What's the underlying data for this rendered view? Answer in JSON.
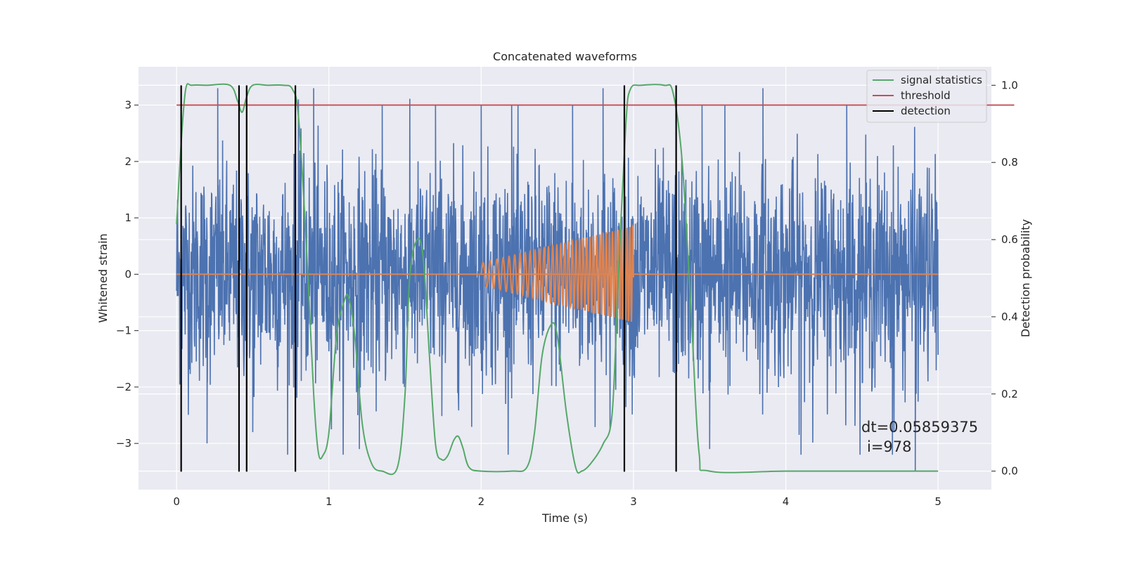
{
  "chart_data": {
    "type": "line",
    "title": "Concatenated waveforms",
    "xlabel": "Time (s)",
    "ylabel_left": "Whitened strain",
    "ylabel_right": "Detection probability",
    "xlim": [
      -0.25,
      5.35
    ],
    "ylim_left": [
      -3.82,
      3.68
    ],
    "ylim_right": [
      -0.048,
      1.048
    ],
    "x_ticks": [
      "0",
      "1",
      "2",
      "3",
      "4",
      "5"
    ],
    "y_left_ticks": [
      "−3",
      "−2",
      "−1",
      "0",
      "1",
      "2",
      "3"
    ],
    "y_right_ticks": [
      "0.0",
      "0.2",
      "0.4",
      "0.6",
      "0.8",
      "1.0"
    ],
    "grid": true,
    "legend_position": "top-right",
    "colors": {
      "strain": "#4c72b0",
      "injection": "#dd8452",
      "signal": "#55a868",
      "threshold": "#c44e52",
      "detection": "#000000",
      "background": "#eaeaf2"
    },
    "series": [
      {
        "name": "",
        "role": "strain",
        "axis": "left",
        "description_x_range": [
          0,
          5
        ],
        "envelope_pos": [
          [
            0,
            2.0
          ],
          [
            0.5,
            2.3
          ],
          [
            1,
            2.2
          ],
          [
            2,
            2.4
          ],
          [
            3,
            2.4
          ],
          [
            4,
            2.4
          ],
          [
            5,
            2.5
          ]
        ],
        "peak_values": [
          [
            0.27,
            3.3
          ],
          [
            0.8,
            3.1
          ],
          [
            0.9,
            3.3
          ],
          [
            1.35,
            3.0
          ],
          [
            1.7,
            3.0
          ],
          [
            2.0,
            3.0
          ],
          [
            2.2,
            3.0
          ],
          [
            2.6,
            3.0
          ],
          [
            2.8,
            3.3
          ],
          [
            3.45,
            3.0
          ],
          [
            3.6,
            3.0
          ],
          [
            3.85,
            3.3
          ],
          [
            4.4,
            3.0
          ],
          [
            4.85,
            -3.5
          ],
          [
            4.7,
            -3.2
          ],
          [
            4.1,
            -3.2
          ],
          [
            3.5,
            -3.1
          ],
          [
            1.2,
            -3.1
          ],
          [
            0.5,
            -2.8
          ],
          [
            0.2,
            -3.0
          ]
        ]
      },
      {
        "name": "",
        "role": "injection",
        "axis": "left",
        "x": [
          2.0,
          3.0
        ],
        "amplitude_start": 0.2,
        "amplitude_end": 0.85,
        "freq_start_hz": 20,
        "freq_end_hz": 55
      },
      {
        "name": "signal statistics",
        "role": "signal",
        "axis": "right",
        "x": [
          0.0,
          0.03,
          0.06,
          0.1,
          0.2,
          0.35,
          0.4,
          0.43,
          0.46,
          0.5,
          0.6,
          0.7,
          0.76,
          0.8,
          0.85,
          0.9,
          0.93,
          0.96,
          1.0,
          1.05,
          1.1,
          1.13,
          1.17,
          1.22,
          1.28,
          1.35,
          1.45,
          1.5,
          1.53,
          1.58,
          1.62,
          1.66,
          1.7,
          1.74,
          1.78,
          1.82,
          1.85,
          1.88,
          1.92,
          2.0,
          2.2,
          2.3,
          2.35,
          2.4,
          2.46,
          2.5,
          2.56,
          2.62,
          2.66,
          2.72,
          2.8,
          2.86,
          2.9,
          2.95,
          2.98,
          3.05,
          3.2,
          3.26,
          3.32,
          3.38,
          3.43,
          3.5,
          4.0,
          4.5,
          5.0
        ],
        "y": [
          0.64,
          0.85,
          0.99,
          1.0,
          1.0,
          1.0,
          0.96,
          0.93,
          0.97,
          1.0,
          1.0,
          1.0,
          0.99,
          0.92,
          0.6,
          0.2,
          0.05,
          0.04,
          0.1,
          0.35,
          0.44,
          0.45,
          0.35,
          0.12,
          0.02,
          0.0,
          0.01,
          0.2,
          0.5,
          0.6,
          0.55,
          0.3,
          0.07,
          0.03,
          0.04,
          0.08,
          0.09,
          0.06,
          0.01,
          0.0,
          0.0,
          0.01,
          0.1,
          0.3,
          0.38,
          0.35,
          0.15,
          0.01,
          0.0,
          0.02,
          0.07,
          0.15,
          0.5,
          0.9,
          0.99,
          1.0,
          1.0,
          0.98,
          0.8,
          0.4,
          0.05,
          0.0,
          0.0,
          0.0,
          0.0
        ]
      },
      {
        "name": "threshold",
        "role": "threshold",
        "axis": "left",
        "x": [
          0,
          5.5
        ],
        "y": [
          3.0,
          3.0
        ]
      },
      {
        "name": "detection",
        "role": "detection",
        "axis": "left",
        "vlines_x": [
          0.03,
          0.41,
          0.46,
          0.78,
          2.94,
          3.28
        ],
        "y_range": [
          -3.5,
          3.35
        ]
      }
    ],
    "baseline_points": [
      {
        "role": "injection",
        "x_range": [
          0,
          5
        ],
        "y": 0
      }
    ],
    "annotations": [
      "dt=0.05859375",
      "i=978"
    ]
  }
}
